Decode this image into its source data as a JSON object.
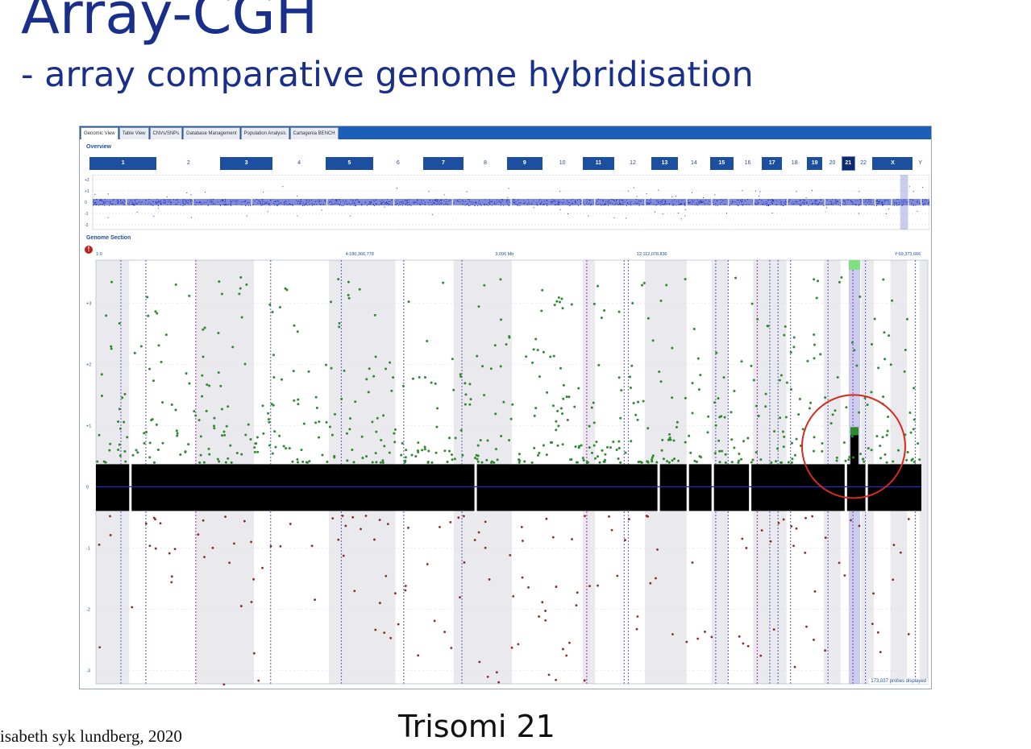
{
  "slide": {
    "title": "Array-CGH",
    "subtitle": "- array comparative genome hybridisation",
    "caption": "Trisomi 21",
    "credit": "isabeth syk lundberg, 2020"
  },
  "app": {
    "tabs": [
      "Genomic View",
      "Table View",
      "CNVs/SNPs",
      "Database Management",
      "Population Analysis",
      "Cartagenia BENCH"
    ],
    "active_tab": "Genomic View",
    "accent_color": "#1c5fb8",
    "overview": {
      "label": "Overview",
      "y_ticks": [
        "+2",
        "+1",
        "0",
        "-1",
        "-2"
      ],
      "chromosomes": [
        "1",
        "2",
        "3",
        "4",
        "5",
        "6",
        "7",
        "8",
        "9",
        "10",
        "11",
        "12",
        "13",
        "14",
        "15",
        "16",
        "17",
        "18",
        "19",
        "20",
        "21",
        "22",
        "X",
        "Y"
      ],
      "selected_chromosome": "21"
    },
    "genome_section": {
      "label": "Genome Section",
      "positions": [
        "1:0",
        "4:180,366,778",
        "3,096 Mb",
        "12:112,078,836",
        "Y:69,373,666"
      ],
      "y_ticks": [
        "+3",
        "+2",
        "+1",
        "0",
        "-1",
        "-2",
        "-3"
      ],
      "probes_displayed": "173,037 probes displayed"
    },
    "colors": {
      "gain": "#2d8a2d",
      "loss": "#8a2c22",
      "baseline": "#000000",
      "mean_line": "#1a2fbf",
      "highlight": "#6a6fd0",
      "annotation_circle": "#d62a1c"
    }
  }
}
